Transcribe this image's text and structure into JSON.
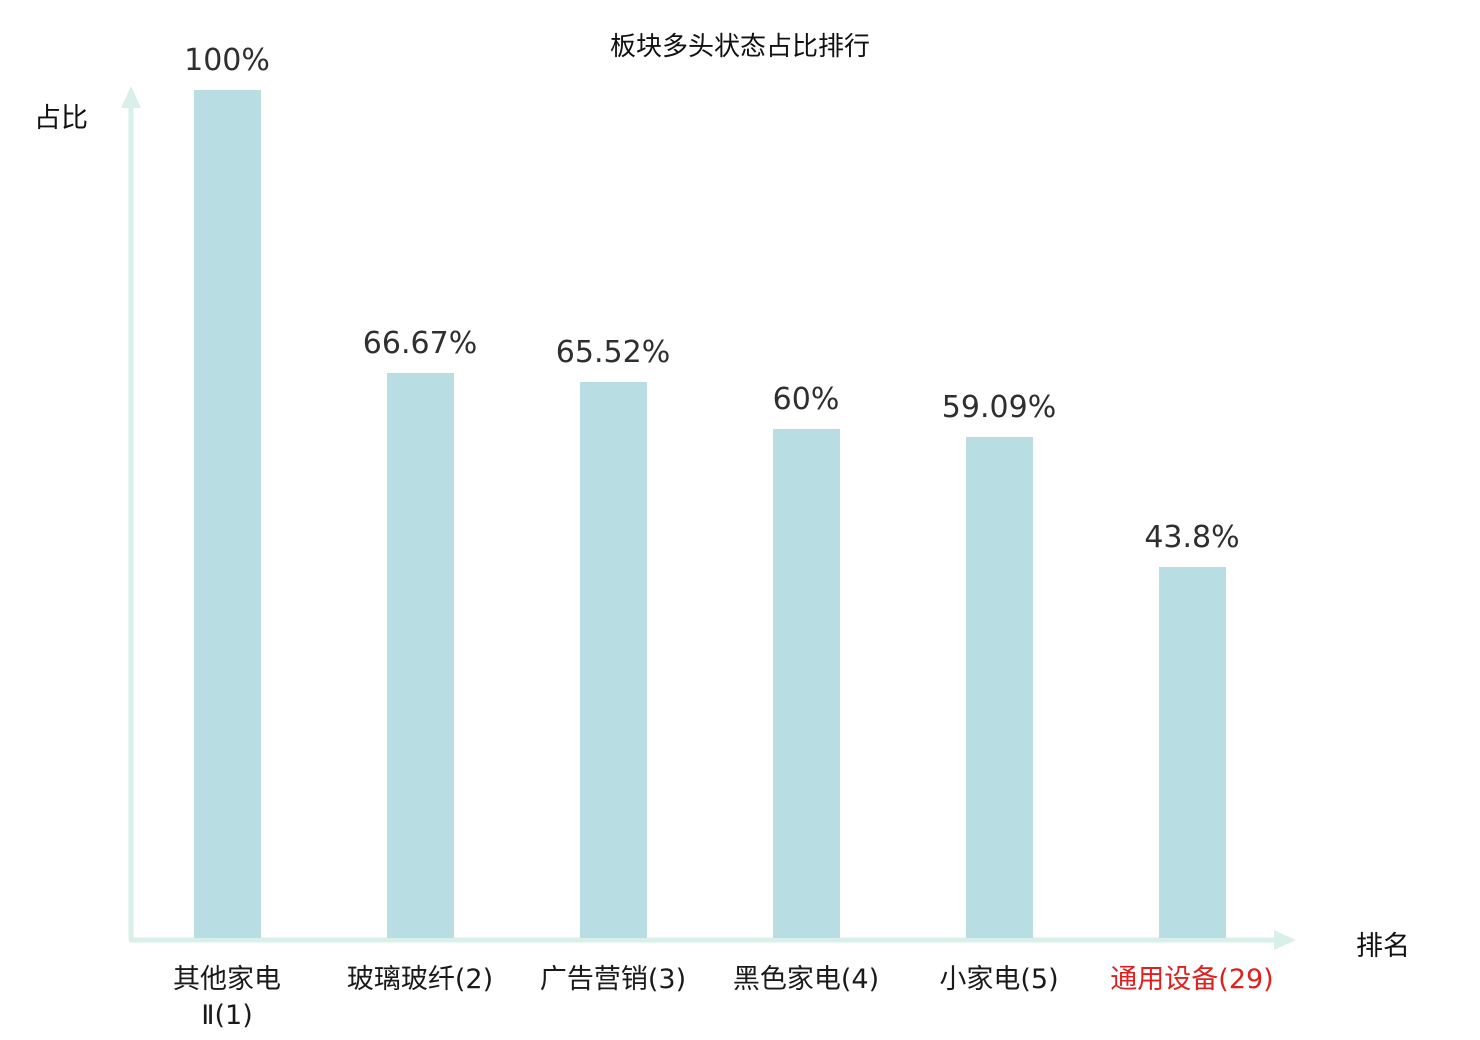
{
  "chart_data": {
    "type": "bar",
    "title": "板块多头状态占比排行",
    "ylabel": "占比",
    "xlabel": "排名",
    "categories": [
      "其他家电Ⅱ(1)",
      "玻璃玻纤(2)",
      "广告营销(3)",
      "黑色家电(4)",
      "小家电(5)",
      "通用设备(29)"
    ],
    "tick_labels": [
      "其他家电\nⅡ(1)",
      "玻璃玻纤(2)",
      "广告营销(3)",
      "黑色家电(4)",
      "小家电(5)",
      "通用设备(29)"
    ],
    "values": [
      100,
      66.67,
      65.52,
      60,
      59.09,
      43.8
    ],
    "value_labels": [
      "100%",
      "66.67%",
      "65.52%",
      "60%",
      "59.09%",
      "43.8%"
    ],
    "highlight_index": 5,
    "bar_color": "#b8dde2",
    "axis_color": "#d9f0ea",
    "label_color": "#2f2f2f",
    "highlight_label_color": "#e02020",
    "ylim": [
      0,
      100
    ],
    "grid": false,
    "legend": "none"
  }
}
